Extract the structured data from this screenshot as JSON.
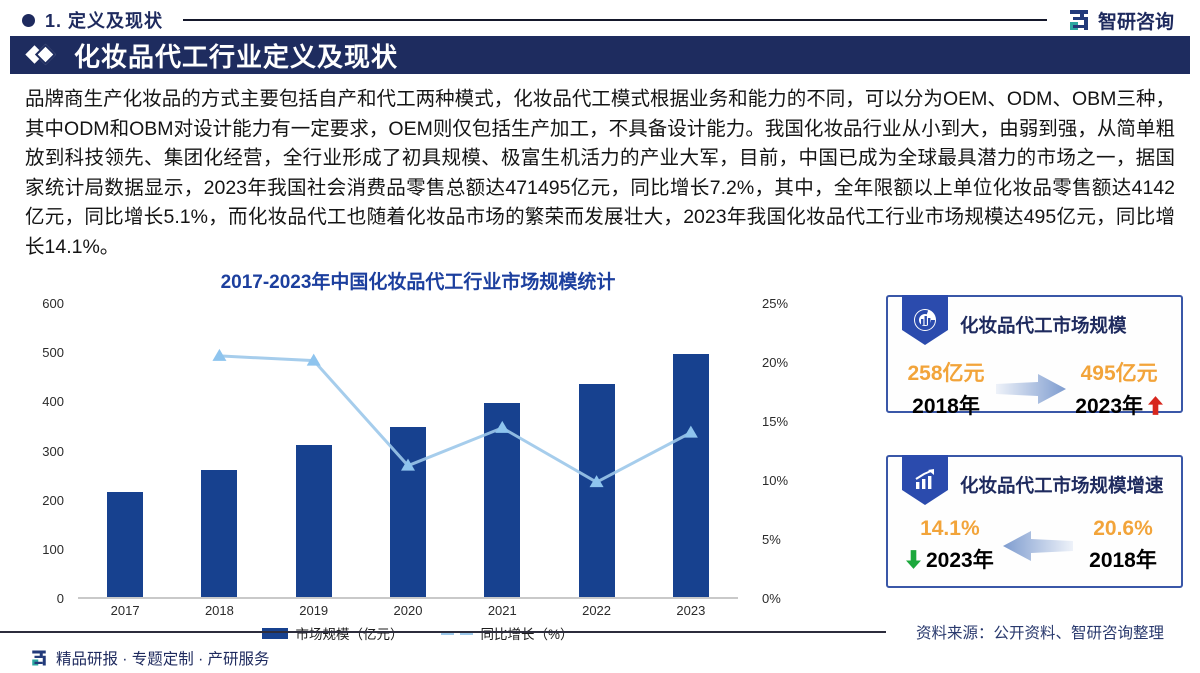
{
  "header": {
    "section_label": "1. 定义及现状",
    "logo_text": "智研咨询"
  },
  "banner": {
    "title": "化妆品代工行业定义及现状"
  },
  "body_paragraph": "品牌商生产化妆品的方式主要包括自产和代工两种模式，化妆品代工模式根据业务和能力的不同，可以分为OEM、ODM、OBM三种，其中ODM和OBM对设计能力有一定要求，OEM则仅包括生产加工，不具备设计能力。我国化妆品行业从小到大，由弱到强，从简单粗放到科技领先、集团化经营，全行业形成了初具规模、极富生机活力的产业大军，目前，中国已成为全球最具潜力的市场之一，据国家统计局数据显示，2023年我国社会消费品零售总额达471495亿元，同比增长7.2%，其中，全年限额以上单位化妆品零售额达4142亿元，同比增长5.1%，而化妆品代工也随着化妆品市场的繁荣而发展壮大，2023年我国化妆品代工行业市场规模达495亿元，同比增长14.1%。",
  "chart_data": {
    "type": "bar",
    "title": "2017-2023年中国化妆品代工行业市场规模统计",
    "categories": [
      "2017",
      "2018",
      "2019",
      "2020",
      "2021",
      "2022",
      "2023"
    ],
    "series": [
      {
        "name": "市场规模（亿元）",
        "type": "bar",
        "axis": "left",
        "color": "#17418f",
        "values": [
          214,
          258,
          310,
          345,
          395,
          434,
          495
        ]
      },
      {
        "name": "同比增长（%）",
        "type": "line",
        "axis": "right",
        "color": "#9cc8ea",
        "marker_color": "#8ec4ee",
        "values": [
          null,
          20.6,
          20.2,
          11.3,
          14.5,
          9.9,
          14.1
        ]
      }
    ],
    "left_axis": {
      "min": 0,
      "max": 600,
      "ticks": [
        0,
        100,
        200,
        300,
        400,
        500,
        600
      ]
    },
    "right_axis": {
      "min": 0,
      "max": 25,
      "ticks": [
        0,
        5,
        10,
        15,
        20,
        25
      ],
      "suffix": "%"
    },
    "grid": false,
    "legend_position": "bottom"
  },
  "cards": [
    {
      "title": "化妆品代工市场规模",
      "icon": "donut-chart-icon",
      "arrow_direction": "right",
      "left": {
        "value": "258亿元",
        "year": "2018年",
        "trend": ""
      },
      "right": {
        "value": "495亿元",
        "year": "2023年",
        "trend": "up-red"
      }
    },
    {
      "title": "化妆品代工市场规模增速",
      "icon": "growth-chart-icon",
      "arrow_direction": "left",
      "left": {
        "value": "14.1%",
        "year": "2023年",
        "trend": "down-green"
      },
      "right": {
        "value": "20.6%",
        "year": "2018年",
        "trend": ""
      }
    }
  ],
  "source_note": "资料来源：公开资料、智研咨询整理",
  "footer": {
    "brand_line": "精品研报 · 专题定制 · 产研服务"
  },
  "colors": {
    "banner_bg": "#1e2c5f",
    "navy_text": "#1e2a5e",
    "chart_title_blue": "#1c3f9e",
    "bar_navy": "#17418f",
    "line_light_blue": "#9cc8ea",
    "value_orange": "#f2a43a",
    "up_arrow_red": "#d7261d",
    "down_arrow_green": "#1ca83c",
    "logo_teal": "#2aa7a0"
  }
}
